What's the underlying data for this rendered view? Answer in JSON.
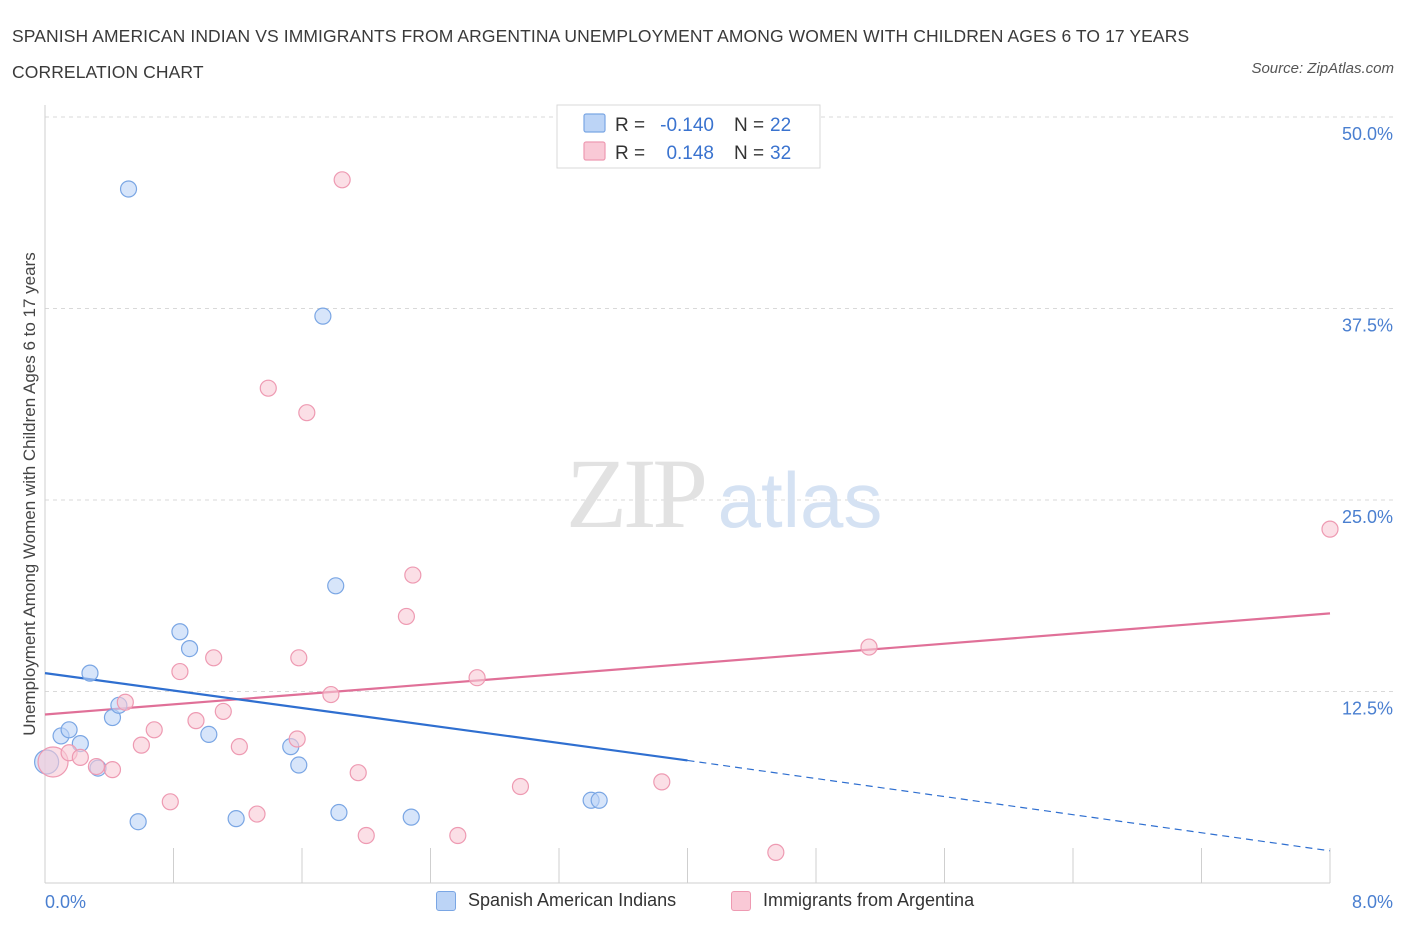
{
  "title": "SPANISH AMERICAN INDIAN VS IMMIGRANTS FROM ARGENTINA UNEMPLOYMENT AMONG WOMEN WITH CHILDREN AGES 6 TO 17 YEARS CORRELATION CHART",
  "source": "Source: ZipAtlas.com",
  "watermark": {
    "zip": "ZIP",
    "atlas": "atlas"
  },
  "stats_legend": [
    {
      "r_label": "R =",
      "r_value": "-0.140",
      "n_label": "N =",
      "n_value": "22"
    },
    {
      "r_label": "R =",
      "r_value": "0.148",
      "n_label": "N =",
      "n_value": "32"
    }
  ],
  "bottom_legend": [
    {
      "label": "Spanish American Indians"
    },
    {
      "label": "Immigrants from Argentina"
    }
  ],
  "colors": {
    "blue_fill": "#bcd4f6",
    "blue_stroke": "#7aa6e4",
    "blue_line": "#2f6fd0",
    "pink_fill": "#f9c9d6",
    "pink_stroke": "#ee9ab2",
    "pink_line": "#e07098",
    "tick_text": "#4a7fd0",
    "grid": "#d9d9d9"
  },
  "chart_data": {
    "type": "scatter",
    "title": "SPANISH AMERICAN INDIAN VS IMMIGRANTS FROM ARGENTINA UNEMPLOYMENT AMONG WOMEN WITH CHILDREN AGES 6 TO 17 YEARS CORRELATION CHART",
    "xlabel": "",
    "ylabel": "Unemployment Among Women with Children Ages 6 to 17 years",
    "xlim": [
      0,
      8.0
    ],
    "ylim": [
      0,
      50.0
    ],
    "x_tick_labels": [
      "0.0%",
      "8.0%"
    ],
    "y_tick_labels": [
      "12.5%",
      "25.0%",
      "37.5%",
      "50.0%"
    ],
    "y_ticks": [
      12.5,
      25.0,
      37.5,
      50.0
    ],
    "grid": "horizontal dashed",
    "legend_placement": "top-center and bottom",
    "series": [
      {
        "name": "Spanish American Indians",
        "color": "blue",
        "r": -0.14,
        "n": 22,
        "trend": {
          "x": [
            0.0,
            4.0
          ],
          "y": [
            13.7,
            8.0
          ],
          "dashed_to": [
            8.0,
            2.1
          ]
        },
        "points": [
          [
            0.01,
            7.9
          ],
          [
            0.1,
            9.6
          ],
          [
            0.15,
            10.0
          ],
          [
            0.22,
            9.1
          ],
          [
            0.28,
            13.7
          ],
          [
            0.33,
            7.5
          ],
          [
            0.42,
            10.8
          ],
          [
            0.46,
            11.6
          ],
          [
            0.52,
            45.3
          ],
          [
            0.58,
            4.0
          ],
          [
            0.84,
            16.4
          ],
          [
            0.9,
            15.3
          ],
          [
            1.02,
            9.7
          ],
          [
            1.19,
            4.2
          ],
          [
            1.53,
            8.9
          ],
          [
            1.58,
            7.7
          ],
          [
            1.73,
            37.0
          ],
          [
            1.81,
            19.4
          ],
          [
            1.83,
            4.6
          ],
          [
            2.28,
            4.3
          ],
          [
            3.4,
            5.4
          ],
          [
            3.45,
            5.4
          ]
        ]
      },
      {
        "name": "Immigrants from Argentina",
        "color": "pink",
        "r": 0.148,
        "n": 32,
        "trend": {
          "x": [
            0.0,
            8.0
          ],
          "y": [
            11.0,
            17.6
          ]
        },
        "points": [
          [
            0.05,
            7.9
          ],
          [
            0.15,
            8.5
          ],
          [
            0.22,
            8.2
          ],
          [
            0.32,
            7.6
          ],
          [
            0.42,
            7.4
          ],
          [
            0.5,
            11.8
          ],
          [
            0.6,
            9.0
          ],
          [
            0.68,
            10.0
          ],
          [
            0.78,
            5.3
          ],
          [
            0.84,
            13.8
          ],
          [
            0.94,
            10.6
          ],
          [
            1.05,
            14.7
          ],
          [
            1.11,
            11.2
          ],
          [
            1.21,
            8.9
          ],
          [
            1.32,
            4.5
          ],
          [
            1.39,
            32.3
          ],
          [
            1.57,
            9.4
          ],
          [
            1.63,
            30.7
          ],
          [
            1.58,
            14.7
          ],
          [
            1.78,
            12.3
          ],
          [
            1.85,
            45.9
          ],
          [
            1.95,
            7.2
          ],
          [
            2.0,
            3.1
          ],
          [
            2.25,
            17.4
          ],
          [
            2.29,
            20.1
          ],
          [
            2.57,
            3.1
          ],
          [
            2.69,
            13.4
          ],
          [
            2.96,
            6.3
          ],
          [
            3.84,
            6.6
          ],
          [
            4.55,
            2.0
          ],
          [
            5.13,
            15.4
          ],
          [
            8.0,
            23.1
          ]
        ]
      }
    ]
  }
}
